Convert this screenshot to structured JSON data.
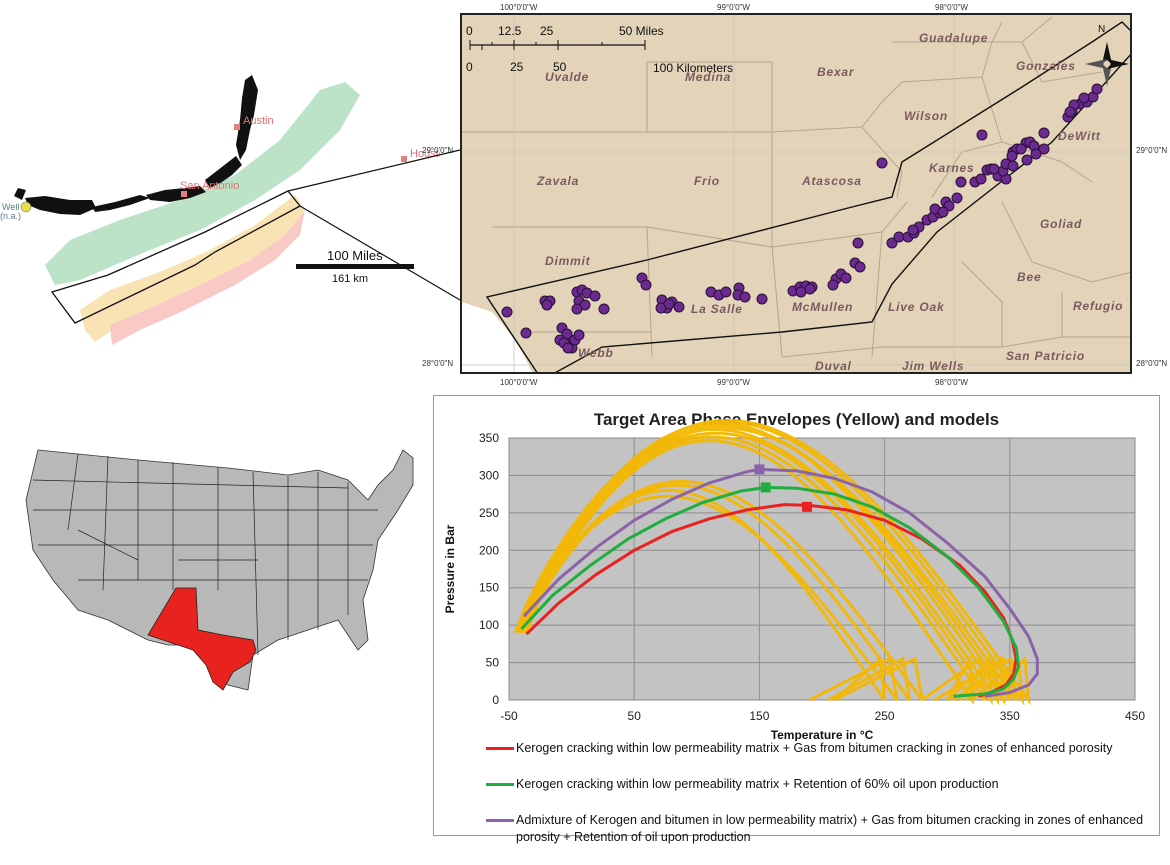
{
  "locator": {
    "cities": [
      "Austin",
      "San Antonio",
      "Houston"
    ],
    "well_label": "Well",
    "well_sub": "(n.a.)",
    "scale_label_miles": "100 Miles",
    "scale_label_km": "161 km"
  },
  "map": {
    "graticule_top": [
      "100°0'0\"W",
      "99°0'0\"W",
      "98°0'0\"W"
    ],
    "graticule_bottom": [
      "100°0'0\"W",
      "99°0'0\"W",
      "98°0'0\"W"
    ],
    "graticule_right": [
      "29°0'0\"N",
      "28°0'0\"N"
    ],
    "graticule_left": [
      "29°0'0\"N",
      "28°0'0\"N"
    ],
    "scale_miles_ticks": [
      "0",
      "12.5",
      "25",
      "50 Miles"
    ],
    "scale_km_ticks": [
      "0",
      "25",
      "50",
      "100 Kilometers"
    ],
    "north": "N",
    "counties": [
      "Uvalde",
      "Medina",
      "Bexar",
      "Guadalupe",
      "Gonzales",
      "Wilson",
      "Karnes",
      "DeWitt",
      "Zavala",
      "Frio",
      "Atascosa",
      "Goliad",
      "Dimmit",
      "La Salle",
      "McMullen",
      "Live Oak",
      "Bee",
      "Refugio",
      "Webb",
      "Duval",
      "Jim Wells",
      "San Patricio"
    ],
    "wells": [
      [
        505,
        310
      ],
      [
        524,
        331
      ],
      [
        543,
        299
      ],
      [
        548,
        299
      ],
      [
        545,
        303
      ],
      [
        560,
        326
      ],
      [
        565,
        332
      ],
      [
        558,
        338
      ],
      [
        564,
        342
      ],
      [
        570,
        346
      ],
      [
        573,
        338
      ],
      [
        577,
        333
      ],
      [
        562,
        341
      ],
      [
        566,
        346
      ],
      [
        575,
        290
      ],
      [
        580,
        288
      ],
      [
        585,
        291
      ],
      [
        577,
        299
      ],
      [
        583,
        303
      ],
      [
        593,
        294
      ],
      [
        602,
        307
      ],
      [
        575,
        307
      ],
      [
        640,
        276
      ],
      [
        644,
        283
      ],
      [
        660,
        298
      ],
      [
        665,
        306
      ],
      [
        670,
        300
      ],
      [
        677,
        305
      ],
      [
        659,
        306
      ],
      [
        667,
        302
      ],
      [
        709,
        290
      ],
      [
        717,
        293
      ],
      [
        724,
        290
      ],
      [
        737,
        286
      ],
      [
        736,
        293
      ],
      [
        743,
        295
      ],
      [
        760,
        297
      ],
      [
        791,
        289
      ],
      [
        798,
        285
      ],
      [
        804,
        284
      ],
      [
        810,
        285
      ],
      [
        799,
        290
      ],
      [
        808,
        287
      ],
      [
        834,
        277
      ],
      [
        839,
        272
      ],
      [
        844,
        276
      ],
      [
        831,
        283
      ],
      [
        853,
        261
      ],
      [
        858,
        265
      ],
      [
        856,
        241
      ],
      [
        880,
        161
      ],
      [
        890,
        241
      ],
      [
        897,
        235
      ],
      [
        906,
        235
      ],
      [
        912,
        231
      ],
      [
        917,
        225
      ],
      [
        911,
        228
      ],
      [
        925,
        218
      ],
      [
        931,
        215
      ],
      [
        938,
        211
      ],
      [
        933,
        207
      ],
      [
        944,
        200
      ],
      [
        947,
        204
      ],
      [
        941,
        210
      ],
      [
        955,
        196
      ],
      [
        959,
        180
      ],
      [
        973,
        180
      ],
      [
        979,
        177
      ],
      [
        985,
        168
      ],
      [
        989,
        167
      ],
      [
        998,
        171
      ],
      [
        996,
        174
      ],
      [
        1004,
        177
      ],
      [
        1001,
        169
      ],
      [
        992,
        167
      ],
      [
        1011,
        150
      ],
      [
        1015,
        147
      ],
      [
        1024,
        141
      ],
      [
        1028,
        140
      ],
      [
        1032,
        144
      ],
      [
        1042,
        147
      ],
      [
        1034,
        152
      ],
      [
        1019,
        147
      ],
      [
        1025,
        158
      ],
      [
        1010,
        154
      ],
      [
        1042,
        131
      ],
      [
        1066,
        115
      ],
      [
        1070,
        109
      ],
      [
        1078,
        102
      ],
      [
        1085,
        100
      ],
      [
        1091,
        95
      ],
      [
        1095,
        87
      ],
      [
        1082,
        96
      ],
      [
        1072,
        103
      ],
      [
        1068,
        110
      ],
      [
        980,
        133
      ],
      [
        1004,
        162
      ],
      [
        1011,
        164
      ]
    ]
  },
  "chart_data": {
    "type": "line",
    "title": "Target Area Phase Envelopes (Yellow) and models",
    "xlabel": "Temperature in °C",
    "ylabel": "Pressure in Bar",
    "xlim": [
      -50,
      450
    ],
    "ylim": [
      0,
      350
    ],
    "xticks": [
      -50,
      50,
      150,
      250,
      350,
      450
    ],
    "yticks": [
      0,
      50,
      100,
      150,
      200,
      250,
      300,
      350
    ],
    "grid": true,
    "legend": "bottom",
    "series": [
      {
        "name": "Kerogen cracking within low permeability matrix + Gas from bitumen cracking in zones of enhanced porosity",
        "color": "#e8231f",
        "critical_point": [
          188,
          258
        ],
        "x": [
          -36,
          -10,
          20,
          50,
          80,
          110,
          140,
          170,
          190,
          220,
          250,
          280,
          310,
          330,
          345,
          352,
          355,
          353,
          347,
          335,
          325
        ],
        "y": [
          88,
          130,
          168,
          200,
          225,
          242,
          254,
          261,
          260,
          254,
          240,
          215,
          180,
          145,
          110,
          80,
          55,
          35,
          20,
          10,
          5
        ]
      },
      {
        "name": "Kerogen cracking within low permeability matrix + Retention of 60% oil upon production",
        "color": "#1fae3f",
        "critical_point": [
          155,
          284
        ],
        "x": [
          -40,
          -15,
          15,
          45,
          75,
          105,
          135,
          155,
          180,
          210,
          240,
          270,
          300,
          325,
          345,
          355,
          357,
          353,
          345,
          330,
          305
        ],
        "y": [
          95,
          140,
          180,
          215,
          242,
          264,
          279,
          284,
          283,
          275,
          258,
          230,
          192,
          150,
          105,
          70,
          45,
          28,
          15,
          8,
          5
        ]
      },
      {
        "name": "Admixture of Kerogen and bitumen in low permeability matrix) + Gas from bitumen cracking in zones of enhanced porosity + Retention of oil upon production",
        "color": "#8a63a8",
        "critical_point": [
          150,
          308
        ],
        "x": [
          -38,
          -10,
          20,
          50,
          80,
          110,
          140,
          150,
          180,
          210,
          240,
          270,
          300,
          330,
          350,
          365,
          372,
          372,
          365,
          350,
          330
        ],
        "y": [
          112,
          162,
          204,
          240,
          268,
          290,
          305,
          308,
          306,
          296,
          278,
          250,
          210,
          165,
          122,
          85,
          55,
          35,
          20,
          10,
          5
        ]
      }
    ]
  }
}
